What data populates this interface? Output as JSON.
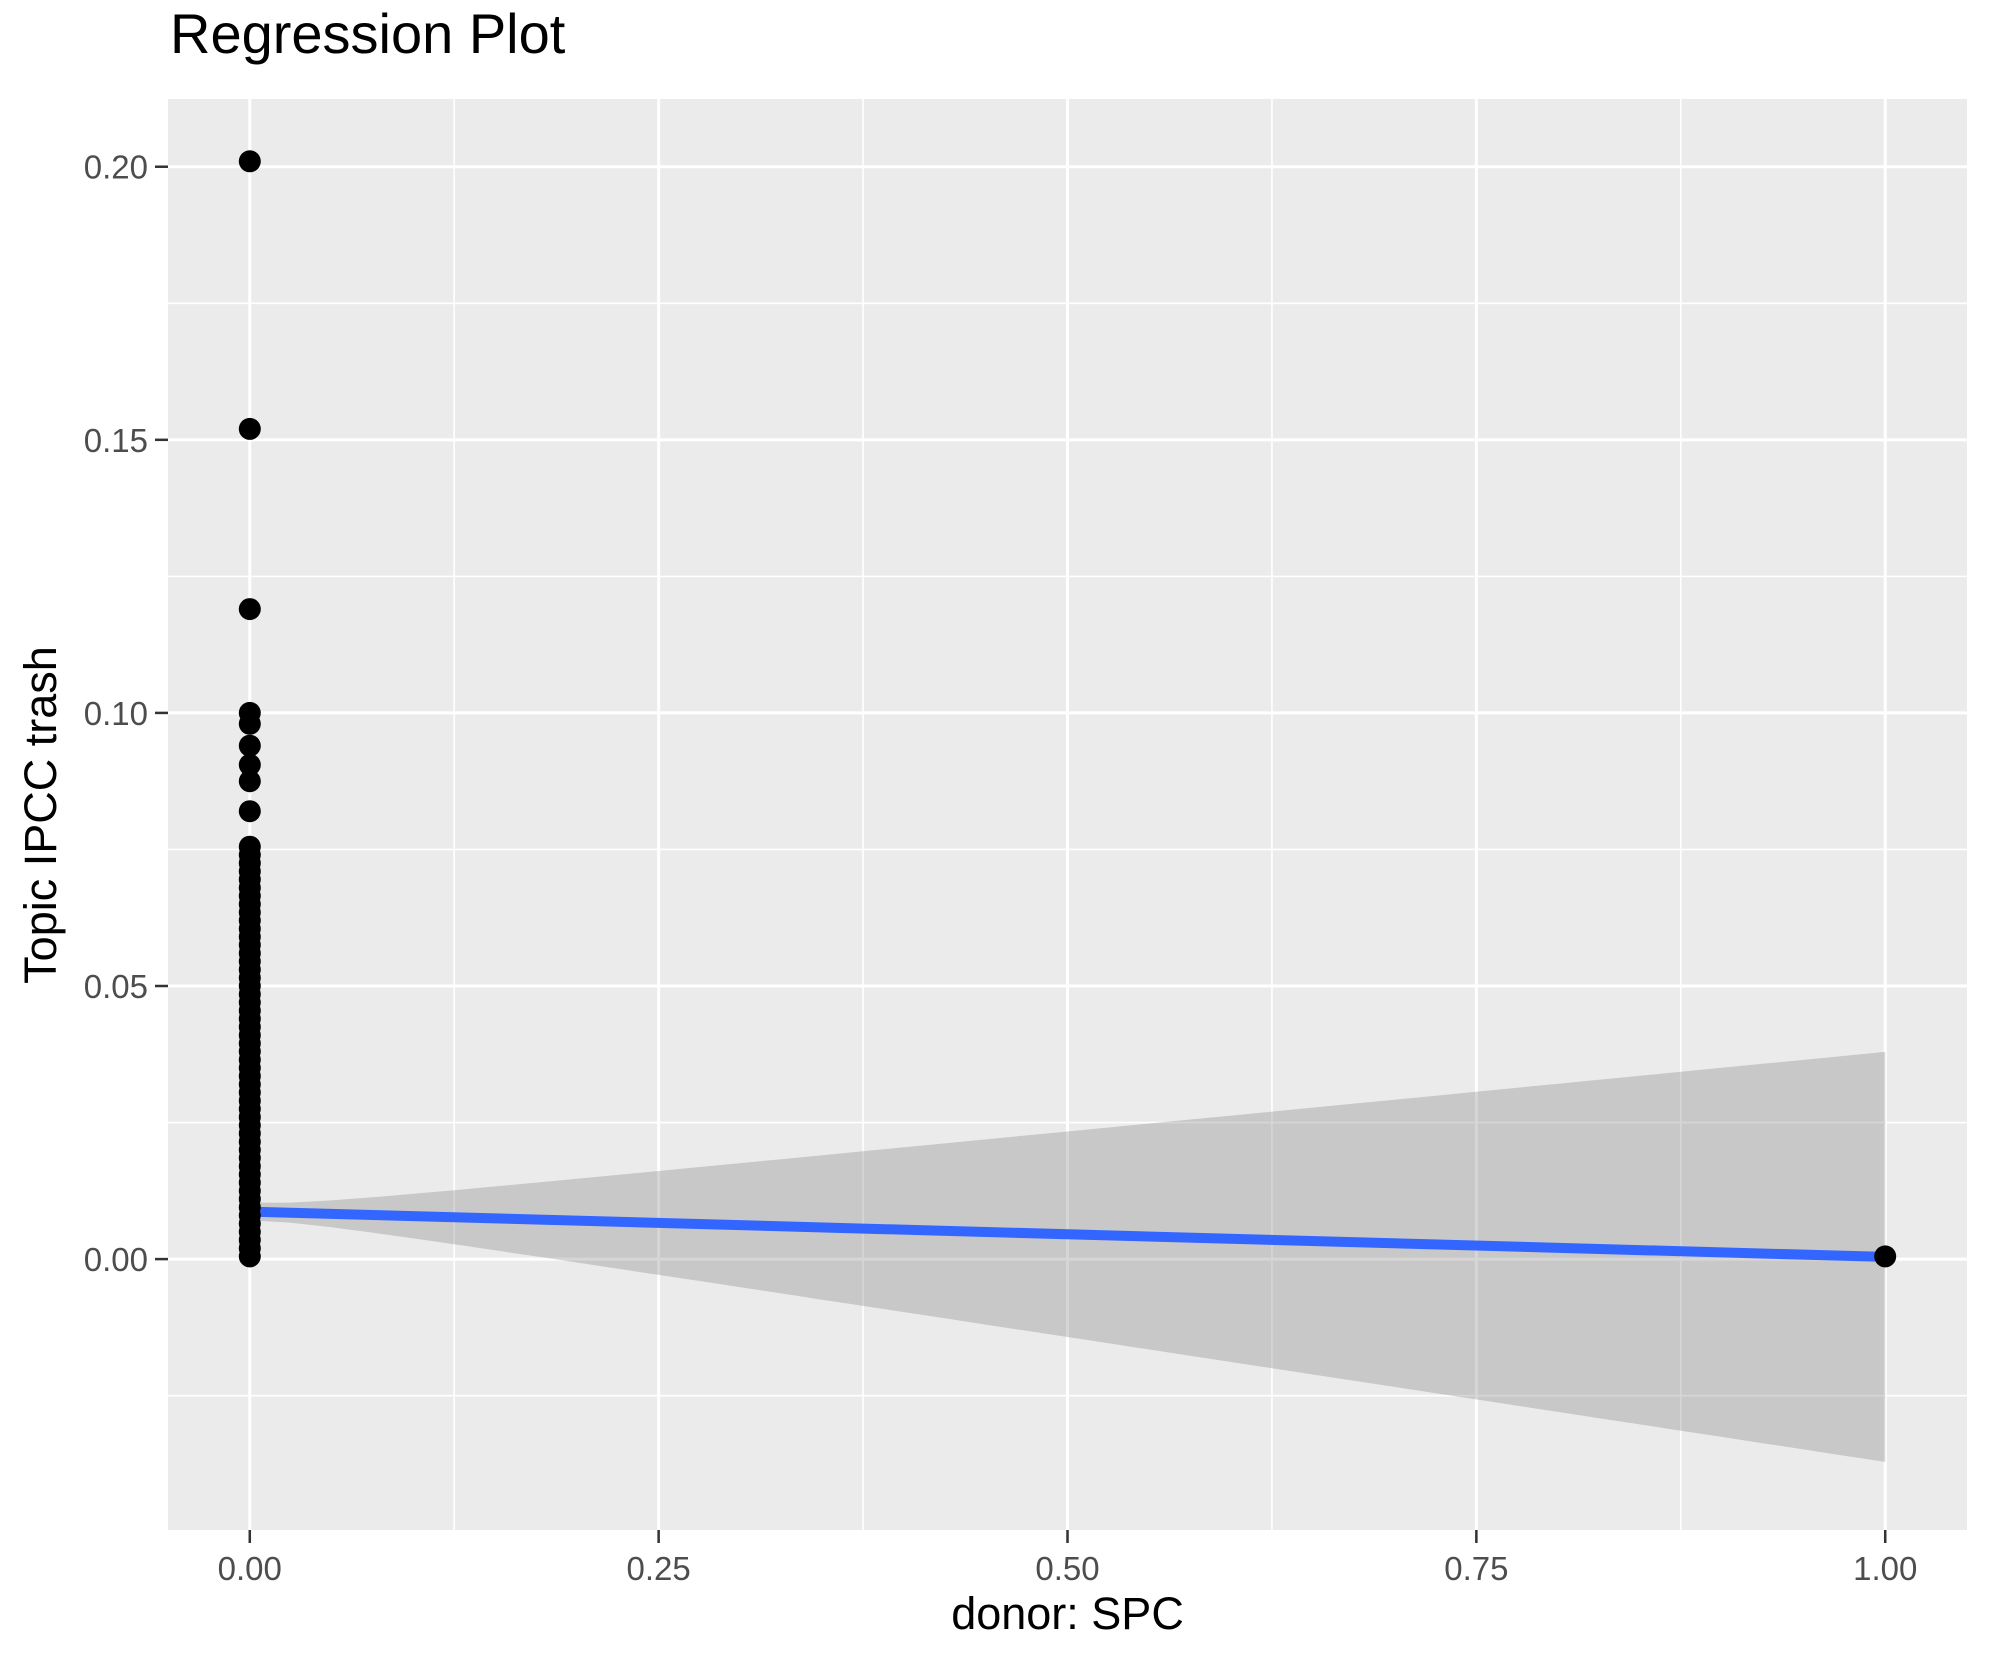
{
  "title": "Regression Plot",
  "chart_data": {
    "type": "scatter",
    "title": "Regression Plot",
    "xlabel": "donor: SPC",
    "ylabel": "Topic IPCC trash",
    "x_ticks": [
      0.0,
      0.25,
      0.5,
      0.75,
      1.0
    ],
    "x_tick_labels": [
      "0.00",
      "0.25",
      "0.50",
      "0.75",
      "1.00"
    ],
    "y_ticks": [
      0.0,
      0.05,
      0.1,
      0.15,
      0.2
    ],
    "y_tick_labels": [
      "0.00",
      "0.05",
      "0.10",
      "0.15",
      "0.20"
    ],
    "minor_x": [
      0.125,
      0.375,
      0.625,
      0.875
    ],
    "minor_y": [
      -0.025,
      0.025,
      0.075,
      0.125,
      0.175
    ],
    "x_domain": [
      -0.05,
      1.05
    ],
    "y_domain": [
      -0.0496,
      0.2124
    ],
    "grid": true,
    "legend_position": "none",
    "colors": {
      "panel_bg": "#EBEBEB",
      "grid": "#FFFFFF",
      "point": "#000000",
      "smooth_line": "#3366FF",
      "ribbon_fill": "rgba(128,128,128,0.32)",
      "tick_text": "#4D4D4D",
      "tick_mark": "#333333",
      "title_text": "#000000"
    },
    "smooth_line": {
      "x": [
        0,
        1
      ],
      "y": [
        0.0087,
        0.0004
      ]
    },
    "ribbon": {
      "x_range": [
        0,
        1
      ],
      "half_width_at_x0": 0.0016,
      "half_width_at_x1": 0.0375
    },
    "points": [
      [
        0,
        0.201
      ],
      [
        0,
        0.152
      ],
      [
        0,
        0.119
      ],
      [
        0,
        0.1
      ],
      [
        0,
        0.098
      ],
      [
        0,
        0.094
      ],
      [
        0,
        0.0905
      ],
      [
        0,
        0.0875
      ],
      [
        0,
        0.082
      ],
      [
        0,
        0.0755
      ],
      [
        0,
        0.074
      ],
      [
        0,
        0.0725
      ],
      [
        0,
        0.071
      ],
      [
        0,
        0.0695
      ],
      [
        0,
        0.068
      ],
      [
        0,
        0.0665
      ],
      [
        0,
        0.065
      ],
      [
        0,
        0.0635
      ],
      [
        0,
        0.062
      ],
      [
        0,
        0.0605
      ],
      [
        0,
        0.059
      ],
      [
        0,
        0.0575
      ],
      [
        0,
        0.056
      ],
      [
        0,
        0.0545
      ],
      [
        0,
        0.053
      ],
      [
        0,
        0.0515
      ],
      [
        0,
        0.05
      ],
      [
        0,
        0.0485
      ],
      [
        0,
        0.047
      ],
      [
        0,
        0.0455
      ],
      [
        0,
        0.044
      ],
      [
        0,
        0.0425
      ],
      [
        0,
        0.041
      ],
      [
        0,
        0.0395
      ],
      [
        0,
        0.038
      ],
      [
        0,
        0.0365
      ],
      [
        0,
        0.035
      ],
      [
        0,
        0.0335
      ],
      [
        0,
        0.032
      ],
      [
        0,
        0.0305
      ],
      [
        0,
        0.029
      ],
      [
        0,
        0.0275
      ],
      [
        0,
        0.026
      ],
      [
        0,
        0.0245
      ],
      [
        0,
        0.023
      ],
      [
        0,
        0.0215
      ],
      [
        0,
        0.02
      ],
      [
        0,
        0.0185
      ],
      [
        0,
        0.017
      ],
      [
        0,
        0.0155
      ],
      [
        0,
        0.014
      ],
      [
        0,
        0.0125
      ],
      [
        0,
        0.011
      ],
      [
        0,
        0.0095
      ],
      [
        0,
        0.008
      ],
      [
        0,
        0.0065
      ],
      [
        0,
        0.005
      ],
      [
        0,
        0.0035
      ],
      [
        0,
        0.002
      ],
      [
        0,
        0.0005
      ],
      [
        1,
        0.0005
      ]
    ]
  }
}
